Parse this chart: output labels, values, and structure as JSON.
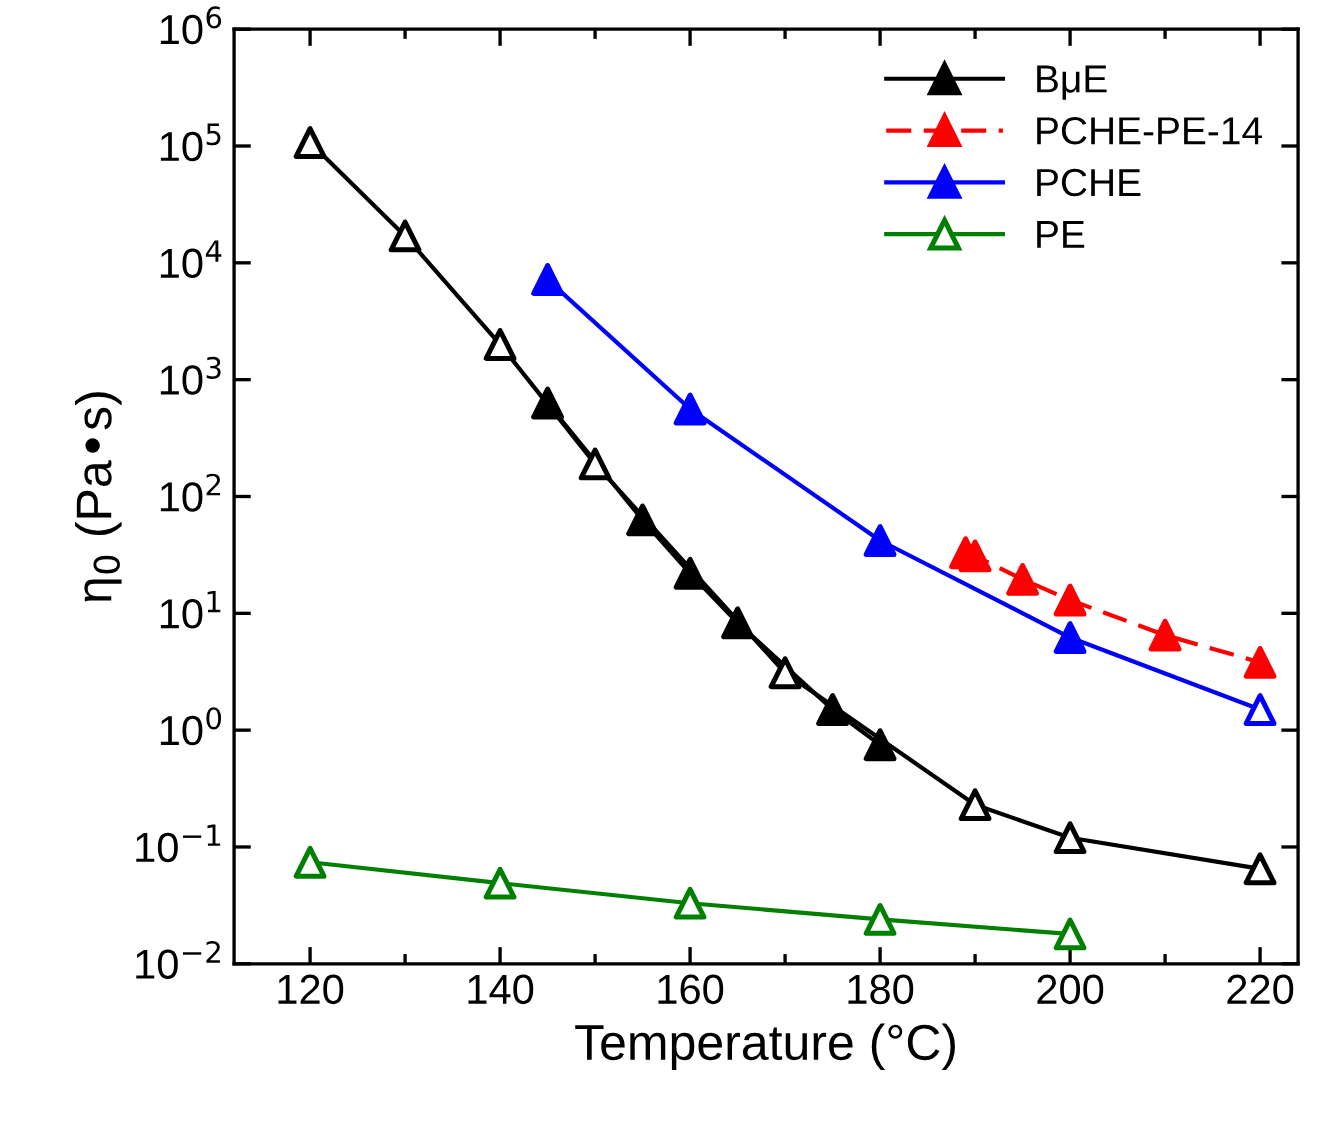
{
  "chart_data": {
    "type": "line",
    "xlabel": "Temperature (°C)",
    "ylabel": "η$_{0}$ (Pa•s)",
    "log": "y",
    "marker": "triangle",
    "legend": "top right",
    "grid": false,
    "xlim": [
      112,
      224
    ],
    "ylim": [
      0.01,
      1000000
    ],
    "xticks": [
      120,
      {
        "value": 130,
        "label": null
      },
      140,
      {
        "value": 150,
        "label": null
      },
      160,
      {
        "value": 170,
        "label": null
      },
      180,
      {
        "value": 190,
        "label": null
      },
      200,
      {
        "value": 210,
        "label": null
      },
      220
    ],
    "yticks": [
      {
        "value": 0.01,
        "label": "10$^{−2}$"
      },
      {
        "value": 0.1,
        "label": "10$^{−1}$"
      },
      {
        "value": 1,
        "label": "10$^{0}$"
      },
      {
        "value": 10,
        "label": "10$^{1}$"
      },
      {
        "value": 100,
        "label": "10$^{2}$"
      },
      {
        "value": 1000,
        "label": "10$^{3}$"
      },
      {
        "value": 10000,
        "label": "10$^{4}$"
      },
      {
        "value": 100000,
        "label": "10$^{5}$"
      },
      {
        "value": 1000000,
        "label": "10$^{6}$"
      }
    ],
    "series": [
      {
        "name": "BμE",
        "color": "#000000",
        "x": [
          145,
          155,
          160,
          165,
          175,
          180
        ],
        "values": [
          630,
          63,
          22,
          8.3,
          1.5,
          0.75
        ],
        "colors": [
          "#000000",
          "#000000",
          "#000000",
          "#000000",
          "#000000",
          "#000000"
        ]
      },
      {
        "color": "#000000",
        "x": [
          120,
          130,
          140,
          150,
          170,
          190,
          200,
          220
        ],
        "values": [
          107000,
          17000,
          2000,
          190,
          3.1,
          0.23,
          0.12,
          0.065
        ],
        "colors": [
          "#ffffff",
          "#ffffff",
          "#ffffff",
          "#ffffff",
          "#ffffff",
          "#ffffff",
          "#ffffff",
          "#ffffff"
        ]
      },
      {
        "name": "PCHE-PE-14",
        "color": "#ff0000",
        "line_style": "dashed",
        "x": [
          189,
          190,
          195,
          200,
          210,
          220
        ],
        "values": [
          33,
          31,
          19.5,
          13,
          6.5,
          3.8
        ],
        "colors": [
          "#ff0000",
          "#ff0000",
          "#ff0000",
          "#ff0000",
          "#ff0000",
          "#ff0000"
        ]
      },
      {
        "name": "PCHE",
        "color": "#0000ff",
        "x": [
          145,
          160,
          180,
          200,
          220
        ],
        "values": [
          7200,
          560,
          42,
          6.2,
          1.5
        ],
        "colors": [
          "#0000ff",
          "#0000ff",
          "#0000ff",
          "#0000ff",
          "#ffffff"
        ]
      },
      {
        "name": "PE",
        "color": "#008000",
        "x": [
          120,
          140,
          160,
          180,
          200
        ],
        "values": [
          0.074,
          0.049,
          0.033,
          0.024,
          0.018
        ],
        "colors": [
          "#ffffff",
          "#ffffff",
          "#ffffff",
          "#ffffff",
          "#ffffff"
        ]
      }
    ]
  }
}
